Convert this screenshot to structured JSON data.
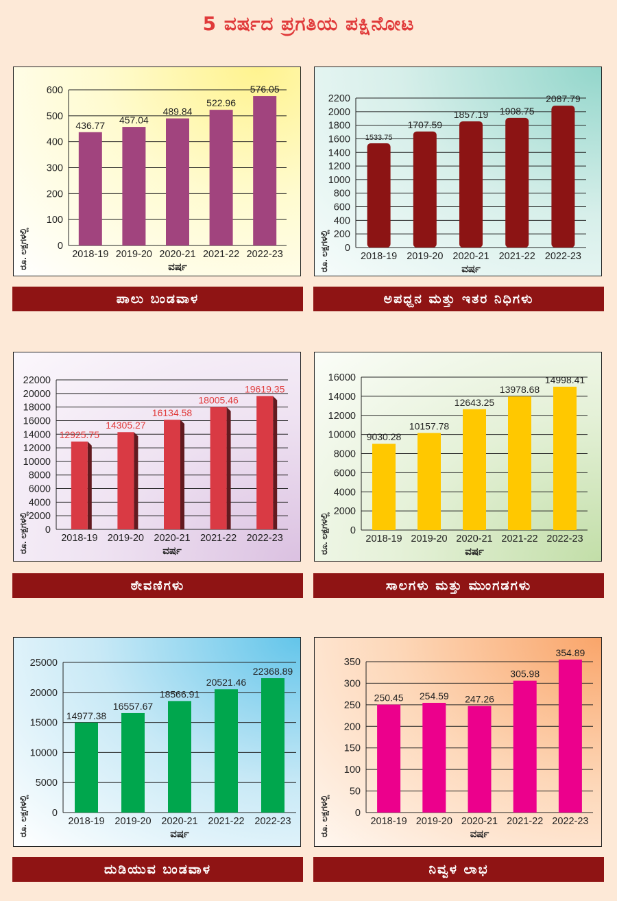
{
  "title": "5 ವರ್ಷದ ಪ್ರಗತಿಯ ಪಕ್ಷಿನೋಟ",
  "colors": {
    "bar_purple": "#a1447e",
    "bar_maroon": "#8c1414",
    "bar_red": "#d93a44",
    "bar_yellow": "#ffc800",
    "bar_green": "#00a64d",
    "bar_magenta": "#ec008c",
    "banner": "#8f1414",
    "title": "#e03a3a"
  },
  "chart_data": [
    {
      "id": "c1",
      "type": "bar",
      "title": "ಪಾಲು ಬಂಡವಾಳ",
      "categories": [
        "2018-19",
        "2019-20",
        "2020-21",
        "2021-22",
        "2022-23"
      ],
      "values": [
        436.77,
        457.04,
        489.84,
        522.96,
        576.05
      ],
      "value_labels": [
        "436.77",
        "457.04",
        "489.84",
        "522.96",
        "576.05"
      ],
      "yticks": [
        "0",
        "100",
        "200",
        "300",
        "400",
        "500",
        "600"
      ],
      "ylim": [
        0,
        600
      ],
      "xlabel": "ವರ್ಷ",
      "ylabel": "ರೂ. ಲಕ್ಷಗಳಲ್ಲಿ",
      "color": "#a1447e",
      "label_color": "#222222",
      "style": "flat",
      "grid": true
    },
    {
      "id": "c2",
      "type": "bar",
      "title": "ಅಪಧ್ದನ ಮತ್ತು ಇತರ ನಿಧಿಗಳು",
      "categories": [
        "2018-19",
        "2019-20",
        "2020-21",
        "2021-22",
        "2022-23"
      ],
      "values": [
        1533.75,
        1707.59,
        1857.19,
        1908.75,
        2087.79
      ],
      "value_labels": [
        "1533.75",
        "1707.59",
        "1857.19",
        "1908.75",
        "2087.79"
      ],
      "yticks": [
        "0",
        "200",
        "400",
        "600",
        "800",
        "1000",
        "1200",
        "1400",
        "1600",
        "1800",
        "2000",
        "2200"
      ],
      "ylim": [
        0,
        2200
      ],
      "xlabel": "ವರ್ಷ",
      "ylabel": "ರೂ. ಲಕ್ಷಗಳಲ್ಲಿ",
      "color": "#8c1414",
      "label_color": "#222222",
      "style": "rounded",
      "grid": true
    },
    {
      "id": "c3",
      "type": "bar",
      "title": "ಠೇವಣಿಗಳು",
      "categories": [
        "2018-19",
        "2019-20",
        "2020-21",
        "2021-22",
        "2022-23"
      ],
      "values": [
        12925.75,
        14305.27,
        16134.58,
        18005.46,
        19619.35
      ],
      "value_labels": [
        "12925.75",
        "14305.27",
        "16134.58",
        "18005.46",
        "19619.35"
      ],
      "yticks": [
        "0",
        "2000",
        "4000",
        "6000",
        "8000",
        "10000",
        "12000",
        "14000",
        "16000",
        "18000",
        "20000",
        "22000"
      ],
      "ylim": [
        0,
        22000
      ],
      "xlabel": "ವರ್ಷ",
      "ylabel": "ರೂ. ಲಕ್ಷಗಳಲ್ಲಿ",
      "color": "#d93a44",
      "label_color": "#e03a3a",
      "style": "3d",
      "grid": true
    },
    {
      "id": "c4",
      "type": "bar",
      "title": "ಸಾಲಗಳು ಮತ್ತು ಮುಂಗಡಗಳು",
      "categories": [
        "2018-19",
        "2019-20",
        "2020-21",
        "2021-22",
        "2022-23"
      ],
      "values": [
        9030.28,
        10157.78,
        12643.25,
        13978.68,
        14998.41
      ],
      "value_labels": [
        "9030.28",
        "10157.78",
        "12643.25",
        "13978.68",
        "14998.41"
      ],
      "yticks": [
        "0",
        "2000",
        "4000",
        "6000",
        "8000",
        "10000",
        "12000",
        "14000",
        "16000"
      ],
      "ylim": [
        0,
        16000
      ],
      "xlabel": "ವರ್ಷ",
      "ylabel": "ರೂ. ಲಕ್ಷಗಳಲ್ಲಿ",
      "color": "#ffc800",
      "label_color": "#222222",
      "style": "flat",
      "grid": true
    },
    {
      "id": "c5",
      "type": "bar",
      "title": "ದುಡಿಯುವ ಬಂಡವಾಳ",
      "categories": [
        "2018-19",
        "2019-20",
        "2020-21",
        "2021-22",
        "2022-23"
      ],
      "values": [
        14977.38,
        16557.67,
        18566.91,
        20521.46,
        22368.89
      ],
      "value_labels": [
        "14977.38",
        "16557.67",
        "18566.91",
        "20521.46",
        "22368.89"
      ],
      "yticks": [
        "0",
        "5000",
        "10000",
        "15000",
        "20000",
        "25000"
      ],
      "ylim": [
        0,
        25000
      ],
      "xlabel": "ವರ್ಷ",
      "ylabel": "ರೂ. ಲಕ್ಷಗಳಲ್ಲಿ",
      "color": "#00a64d",
      "label_color": "#222222",
      "style": "flat",
      "grid": true
    },
    {
      "id": "c6",
      "type": "bar",
      "title": "ನಿವ್ವಳ ಲಾಭ",
      "categories": [
        "2018-19",
        "2019-20",
        "2020-21",
        "2021-22",
        "2022-23"
      ],
      "values": [
        250.45,
        254.59,
        247.26,
        305.98,
        354.89
      ],
      "value_labels": [
        "250.45",
        "254.59",
        "247.26",
        "305.98",
        "354.89"
      ],
      "yticks": [
        "0",
        "50",
        "100",
        "150",
        "200",
        "250",
        "300",
        "350"
      ],
      "ylim": [
        0,
        350
      ],
      "xlabel": "ವರ್ಷ",
      "ylabel": "ರೂ. ಲಕ್ಷಗಳಲ್ಲಿ",
      "color": "#ec008c",
      "label_color": "#222222",
      "style": "flat",
      "grid": true
    }
  ]
}
